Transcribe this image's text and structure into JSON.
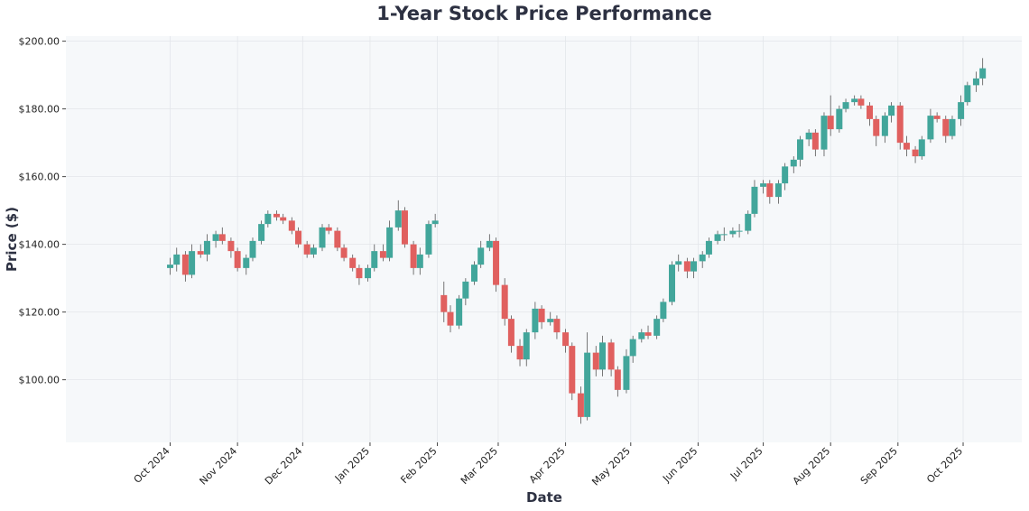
{
  "chart_data": {
    "type": "candlestick",
    "title": "1-Year Stock Price Performance",
    "x_label": "Date",
    "y_label": "Price ($)",
    "up_color": "#42a69b",
    "down_color": "#e0605f",
    "grid": true,
    "xlim": [
      "2024-08-14",
      "2025-10-28"
    ],
    "xticks": [
      {
        "value": "2024-10-01",
        "label": "Oct 2024"
      },
      {
        "value": "2024-11-01",
        "label": "Nov 2024"
      },
      {
        "value": "2024-12-01",
        "label": "Dec 2024"
      },
      {
        "value": "2025-01-01",
        "label": "Jan 2025"
      },
      {
        "value": "2025-02-01",
        "label": "Feb 2025"
      },
      {
        "value": "2025-03-01",
        "label": "Mar 2025"
      },
      {
        "value": "2025-04-01",
        "label": "Apr 2025"
      },
      {
        "value": "2025-05-01",
        "label": "May 2025"
      },
      {
        "value": "2025-06-01",
        "label": "Jun 2025"
      },
      {
        "value": "2025-07-01",
        "label": "Jul 2025"
      },
      {
        "value": "2025-08-01",
        "label": "Aug 2025"
      },
      {
        "value": "2025-09-01",
        "label": "Sep 2025"
      },
      {
        "value": "2025-10-01",
        "label": "Oct 2025"
      }
    ],
    "ylim": [
      81.5,
      201.5
    ],
    "yticks": [
      {
        "value": 100,
        "label": "$100.00"
      },
      {
        "value": 120,
        "label": "$120.00"
      },
      {
        "value": 140,
        "label": "$140.00"
      },
      {
        "value": 160,
        "label": "$160.00"
      },
      {
        "value": 180,
        "label": "$180.00"
      },
      {
        "value": 200,
        "label": "$200.00"
      }
    ],
    "x": [
      "2024-10-01",
      "2024-10-04",
      "2024-10-08",
      "2024-10-11",
      "2024-10-15",
      "2024-10-18",
      "2024-10-22",
      "2024-10-25",
      "2024-10-29",
      "2024-11-01",
      "2024-11-05",
      "2024-11-08",
      "2024-11-12",
      "2024-11-15",
      "2024-11-19",
      "2024-11-22",
      "2024-11-26",
      "2024-11-29",
      "2024-12-03",
      "2024-12-06",
      "2024-12-10",
      "2024-12-13",
      "2024-12-17",
      "2024-12-20",
      "2024-12-24",
      "2024-12-27",
      "2024-12-31",
      "2025-01-03",
      "2025-01-07",
      "2025-01-10",
      "2025-01-14",
      "2025-01-17",
      "2025-01-21",
      "2025-01-24",
      "2025-01-28",
      "2025-01-31",
      "2025-02-04",
      "2025-02-07",
      "2025-02-11",
      "2025-02-14",
      "2025-02-18",
      "2025-02-21",
      "2025-02-25",
      "2025-02-28",
      "2025-03-04",
      "2025-03-07",
      "2025-03-11",
      "2025-03-14",
      "2025-03-18",
      "2025-03-21",
      "2025-03-25",
      "2025-03-28",
      "2025-04-01",
      "2025-04-04",
      "2025-04-08",
      "2025-04-11",
      "2025-04-15",
      "2025-04-18",
      "2025-04-22",
      "2025-04-25",
      "2025-04-29",
      "2025-05-02",
      "2025-05-06",
      "2025-05-09",
      "2025-05-13",
      "2025-05-16",
      "2025-05-20",
      "2025-05-23",
      "2025-05-27",
      "2025-05-30",
      "2025-06-03",
      "2025-06-06",
      "2025-06-10",
      "2025-06-13",
      "2025-06-17",
      "2025-06-20",
      "2025-06-24",
      "2025-06-27",
      "2025-07-01",
      "2025-07-04",
      "2025-07-08",
      "2025-07-11",
      "2025-07-15",
      "2025-07-18",
      "2025-07-22",
      "2025-07-25",
      "2025-07-29",
      "2025-08-01",
      "2025-08-05",
      "2025-08-08",
      "2025-08-12",
      "2025-08-15",
      "2025-08-19",
      "2025-08-22",
      "2025-08-26",
      "2025-08-29",
      "2025-09-02",
      "2025-09-05",
      "2025-09-09",
      "2025-09-12",
      "2025-09-16",
      "2025-09-19",
      "2025-09-23",
      "2025-09-26",
      "2025-09-30",
      "2025-10-03",
      "2025-10-07",
      "2025-10-10"
    ],
    "open": [
      133,
      134,
      137,
      131,
      138,
      137,
      141,
      143,
      141,
      138,
      133,
      136,
      141,
      146,
      149,
      148,
      147,
      144,
      140,
      137,
      139,
      145,
      144,
      139,
      136,
      133,
      130,
      133,
      138,
      136,
      145,
      150,
      140,
      133,
      137,
      146,
      125,
      120,
      116,
      124,
      129,
      134,
      139,
      141,
      128,
      118,
      110,
      106,
      114,
      121,
      117,
      118,
      114,
      110,
      96,
      89,
      108,
      103,
      111,
      103,
      97,
      107,
      112,
      114,
      113,
      118,
      123,
      134,
      135,
      132,
      135,
      137,
      141,
      143,
      143,
      144,
      144,
      149,
      157,
      158,
      154,
      158,
      163,
      165,
      171,
      173,
      168,
      178,
      174,
      180,
      182,
      183,
      181,
      177,
      172,
      178,
      181,
      170,
      168,
      166,
      171,
      178,
      177,
      172,
      177,
      182,
      187,
      189
    ],
    "high": [
      136,
      139,
      138,
      140,
      140,
      143,
      144,
      145,
      142,
      139,
      137,
      142,
      147,
      150,
      150,
      149,
      148,
      145,
      141,
      140,
      146,
      146,
      145,
      140,
      137,
      134,
      134,
      140,
      140,
      147,
      153,
      151,
      141,
      139,
      147,
      149,
      129,
      122,
      125,
      130,
      135,
      141,
      143,
      142,
      130,
      119,
      112,
      115,
      123,
      122,
      120,
      119,
      115,
      111,
      98,
      114,
      110,
      113,
      112,
      104,
      109,
      113,
      115,
      116,
      119,
      124,
      135,
      137,
      136,
      136,
      138,
      142,
      144,
      145,
      145,
      146,
      150,
      159,
      159,
      159,
      159,
      164,
      166,
      172,
      174,
      174,
      179,
      184,
      181,
      183,
      184,
      184,
      182,
      178,
      179,
      182,
      182,
      172,
      169,
      172,
      180,
      179,
      178,
      178,
      184,
      188,
      191,
      195
    ],
    "low": [
      131,
      132,
      129,
      130,
      136,
      135,
      139,
      140,
      136,
      132,
      131,
      135,
      140,
      145,
      147,
      146,
      143,
      139,
      136,
      136,
      138,
      143,
      138,
      135,
      132,
      128,
      129,
      132,
      135,
      135,
      144,
      139,
      131,
      131,
      136,
      145,
      117,
      114,
      115,
      122,
      128,
      133,
      138,
      126,
      116,
      108,
      104,
      104,
      112,
      115,
      116,
      112,
      108,
      94,
      87,
      88,
      101,
      101,
      101,
      95,
      96,
      105,
      111,
      112,
      112,
      117,
      122,
      132,
      130,
      130,
      133,
      136,
      140,
      141,
      142,
      142,
      143,
      148,
      155,
      152,
      152,
      156,
      161,
      163,
      169,
      166,
      166,
      172,
      173,
      179,
      181,
      180,
      175,
      169,
      170,
      176,
      168,
      166,
      164,
      165,
      170,
      176,
      170,
      171,
      175,
      181,
      185,
      187
    ],
    "close": [
      134,
      137,
      131,
      138,
      137,
      141,
      143,
      141,
      138,
      133,
      136,
      141,
      146,
      149,
      148,
      147,
      144,
      140,
      137,
      139,
      145,
      144,
      139,
      136,
      133,
      130,
      133,
      138,
      136,
      145,
      150,
      140,
      133,
      137,
      146,
      147,
      120,
      116,
      124,
      129,
      134,
      139,
      141,
      128,
      118,
      110,
      106,
      114,
      121,
      117,
      118,
      114,
      110,
      96,
      89,
      108,
      103,
      111,
      103,
      97,
      107,
      112,
      114,
      113,
      118,
      123,
      134,
      135,
      132,
      135,
      137,
      141,
      143,
      143,
      144,
      144,
      149,
      157,
      158,
      154,
      158,
      163,
      165,
      171,
      173,
      168,
      178,
      174,
      180,
      182,
      183,
      181,
      177,
      172,
      178,
      181,
      170,
      168,
      166,
      171,
      178,
      177,
      172,
      177,
      182,
      187,
      189,
      192
    ]
  }
}
